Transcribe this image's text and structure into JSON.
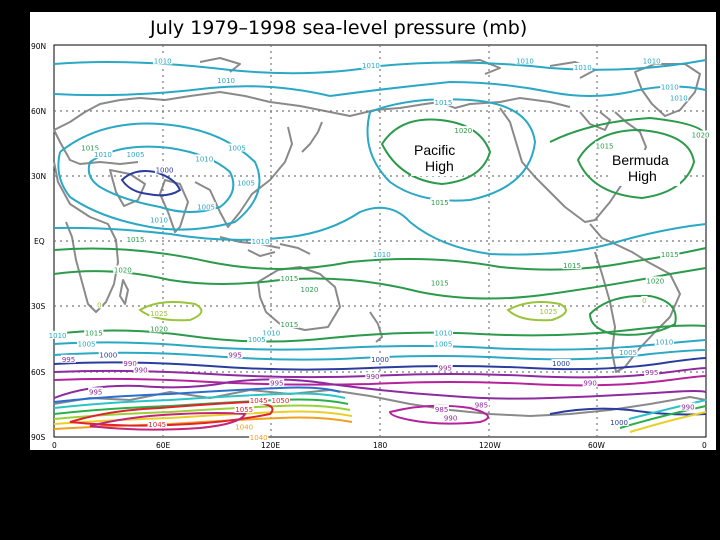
{
  "title": "July 1979–1998 sea-level pressure (mb)",
  "lat_ticks": [
    "90N",
    "60N",
    "30N",
    "EQ",
    "30S",
    "60S",
    "90S"
  ],
  "lon_ticks": [
    "0",
    "60E",
    "120E",
    "180",
    "120W",
    "60W",
    "0"
  ],
  "callouts": {
    "pacific_high": [
      "Pacific",
      "High"
    ],
    "bermuda_high": [
      "Bermuda",
      "High"
    ]
  },
  "contour_labels": [
    {
      "text": "1010",
      "lon": 60,
      "lat": 82,
      "color": "#2aa8c4"
    },
    {
      "text": "1010",
      "lon": 175,
      "lat": 80,
      "color": "#2aa8c4"
    },
    {
      "text": "1010",
      "lon": 260,
      "lat": 82,
      "color": "#2aa8c4"
    },
    {
      "text": "1010",
      "lon": 292,
      "lat": 79,
      "color": "#2aa8c4"
    },
    {
      "text": "1010",
      "lon": 330,
      "lat": 82,
      "color": "#2aa8c4"
    },
    {
      "text": "1010",
      "lon": 95,
      "lat": 73,
      "color": "#2aa8c4"
    },
    {
      "text": "1010",
      "lon": 340,
      "lat": 70,
      "color": "#2aa8c4"
    },
    {
      "text": "1010",
      "lon": 345,
      "lat": 65,
      "color": "#2aa8c4"
    },
    {
      "text": "1015",
      "lon": 215,
      "lat": 63,
      "color": "#2aa8c4"
    },
    {
      "text": "1020",
      "lon": 226,
      "lat": 50,
      "color": "#2b9a4a"
    },
    {
      "text": "1020",
      "lon": 357,
      "lat": 48,
      "color": "#2b9a4a"
    },
    {
      "text": "1015",
      "lon": 20,
      "lat": 42,
      "color": "#2b9a4a"
    },
    {
      "text": "1010",
      "lon": 27,
      "lat": 39,
      "color": "#2aa8c4"
    },
    {
      "text": "1005",
      "lon": 45,
      "lat": 39,
      "color": "#2aa8c4"
    },
    {
      "text": "1010",
      "lon": 83,
      "lat": 37,
      "color": "#2aa8c4"
    },
    {
      "text": "1005",
      "lon": 101,
      "lat": 42,
      "color": "#2aa8c4"
    },
    {
      "text": "1000",
      "lon": 61,
      "lat": 32,
      "color": "#2a3c9e"
    },
    {
      "text": "1005",
      "lon": 106,
      "lat": 26,
      "color": "#2aa8c4"
    },
    {
      "text": "1005",
      "lon": 84,
      "lat": 15,
      "color": "#2aa8c4"
    },
    {
      "text": "1010",
      "lon": 58,
      "lat": 9,
      "color": "#2aa8c4"
    },
    {
      "text": "1015",
      "lon": 304,
      "lat": 43,
      "color": "#2b9a4a"
    },
    {
      "text": "1015",
      "lon": 213,
      "lat": 17,
      "color": "#2b9a4a"
    },
    {
      "text": "1015",
      "lon": 45,
      "lat": 0,
      "color": "#2b9a4a"
    },
    {
      "text": "1010",
      "lon": 114,
      "lat": -1,
      "color": "#2aa8c4"
    },
    {
      "text": "1010",
      "lon": 181,
      "lat": -7,
      "color": "#2aa8c4"
    },
    {
      "text": "1015",
      "lon": 286,
      "lat": -12,
      "color": "#2b9a4a"
    },
    {
      "text": "1015",
      "lon": 340,
      "lat": -7,
      "color": "#2b9a4a"
    },
    {
      "text": "1020",
      "lon": 38,
      "lat": -14,
      "color": "#2b9a4a"
    },
    {
      "text": "1015",
      "lon": 130,
      "lat": -18,
      "color": "#2b9a4a"
    },
    {
      "text": "1020",
      "lon": 141,
      "lat": -23,
      "color": "#2b9a4a"
    },
    {
      "text": "1015",
      "lon": 213,
      "lat": -20,
      "color": "#2b9a4a"
    },
    {
      "text": "1020",
      "lon": 332,
      "lat": -19,
      "color": "#2b9a4a"
    },
    {
      "text": "0",
      "lon": 25,
      "lat": -30,
      "color": "#9ac43a"
    },
    {
      "text": "1025",
      "lon": 58,
      "lat": -34,
      "color": "#9ac43a"
    },
    {
      "text": "1025",
      "lon": 273,
      "lat": -33,
      "color": "#9ac43a"
    },
    {
      "text": "0",
      "lon": 326,
      "lat": -28,
      "color": "#9ac43a"
    },
    {
      "text": "1020",
      "lon": 58,
      "lat": -41,
      "color": "#2b9a4a"
    },
    {
      "text": "1015",
      "lon": 130,
      "lat": -39,
      "color": "#2b9a4a"
    },
    {
      "text": "1010",
      "lon": 2,
      "lat": -44,
      "color": "#2aa8c4"
    },
    {
      "text": "1015",
      "lon": 22,
      "lat": -43,
      "color": "#2b9a4a"
    },
    {
      "text": "1010",
      "lon": 120,
      "lat": -43,
      "color": "#2aa8c4"
    },
    {
      "text": "1005",
      "lon": 112,
      "lat": -46,
      "color": "#2aa8c4"
    },
    {
      "text": "1010",
      "lon": 215,
      "lat": -43,
      "color": "#2aa8c4"
    },
    {
      "text": "1010",
      "lon": 337,
      "lat": -47,
      "color": "#2aa8c4"
    },
    {
      "text": "1005",
      "lon": 18,
      "lat": -48,
      "color": "#2aa8c4"
    },
    {
      "text": "1005",
      "lon": 215,
      "lat": -48,
      "color": "#2aa8c4"
    },
    {
      "text": "1005",
      "lon": 317,
      "lat": -52,
      "color": "#2aa8c4"
    },
    {
      "text": "1000",
      "lon": 30,
      "lat": -53,
      "color": "#2a3c9e"
    },
    {
      "text": "995",
      "lon": 8,
      "lat": -55,
      "color": "#8e2aa0"
    },
    {
      "text": "990",
      "lon": 42,
      "lat": -57,
      "color": "#8e2aa0"
    },
    {
      "text": "990",
      "lon": 48,
      "lat": -60,
      "color": "#8e2aa0"
    },
    {
      "text": "995",
      "lon": 100,
      "lat": -53,
      "color": "#8e2aa0"
    },
    {
      "text": "1000",
      "lon": 180,
      "lat": -55,
      "color": "#2a3c9e"
    },
    {
      "text": "990",
      "lon": 176,
      "lat": -63,
      "color": "#8e2aa0"
    },
    {
      "text": "995",
      "lon": 216,
      "lat": -59,
      "color": "#8e2aa0"
    },
    {
      "text": "1000",
      "lon": 280,
      "lat": -57,
      "color": "#2a3c9e"
    },
    {
      "text": "995",
      "lon": 330,
      "lat": -61,
      "color": "#8e2aa0"
    },
    {
      "text": "990",
      "lon": 296,
      "lat": -66,
      "color": "#8e2aa0"
    },
    {
      "text": "995",
      "lon": 23,
      "lat": -70,
      "color": "#8e2aa0"
    },
    {
      "text": "995",
      "lon": 123,
      "lat": -66,
      "color": "#8e2aa0"
    },
    {
      "text": "985",
      "lon": 214,
      "lat": -78,
      "color": "#8e2aa0"
    },
    {
      "text": "990",
      "lon": 219,
      "lat": -82,
      "color": "#8e2aa0"
    },
    {
      "text": "985",
      "lon": 236,
      "lat": -76,
      "color": "#8e2aa0"
    },
    {
      "text": "990",
      "lon": 350,
      "lat": -77,
      "color": "#8e2aa0"
    },
    {
      "text": "1000",
      "lon": 312,
      "lat": -84,
      "color": "#2a3c9e"
    },
    {
      "text": "1045",
      "lon": 113,
      "lat": -74,
      "color": "#e0242b"
    },
    {
      "text": "1050",
      "lon": 125,
      "lat": -74,
      "color": "#e0242b"
    },
    {
      "text": "1055",
      "lon": 105,
      "lat": -78,
      "color": "#e0242b"
    },
    {
      "text": "1045",
      "lon": 57,
      "lat": -85,
      "color": "#e0242b"
    },
    {
      "text": "1040",
      "lon": 105,
      "lat": -86,
      "color": "#f0a020"
    },
    {
      "text": "1040",
      "lon": 113,
      "lat": -91,
      "color": "#f0a020"
    }
  ]
}
